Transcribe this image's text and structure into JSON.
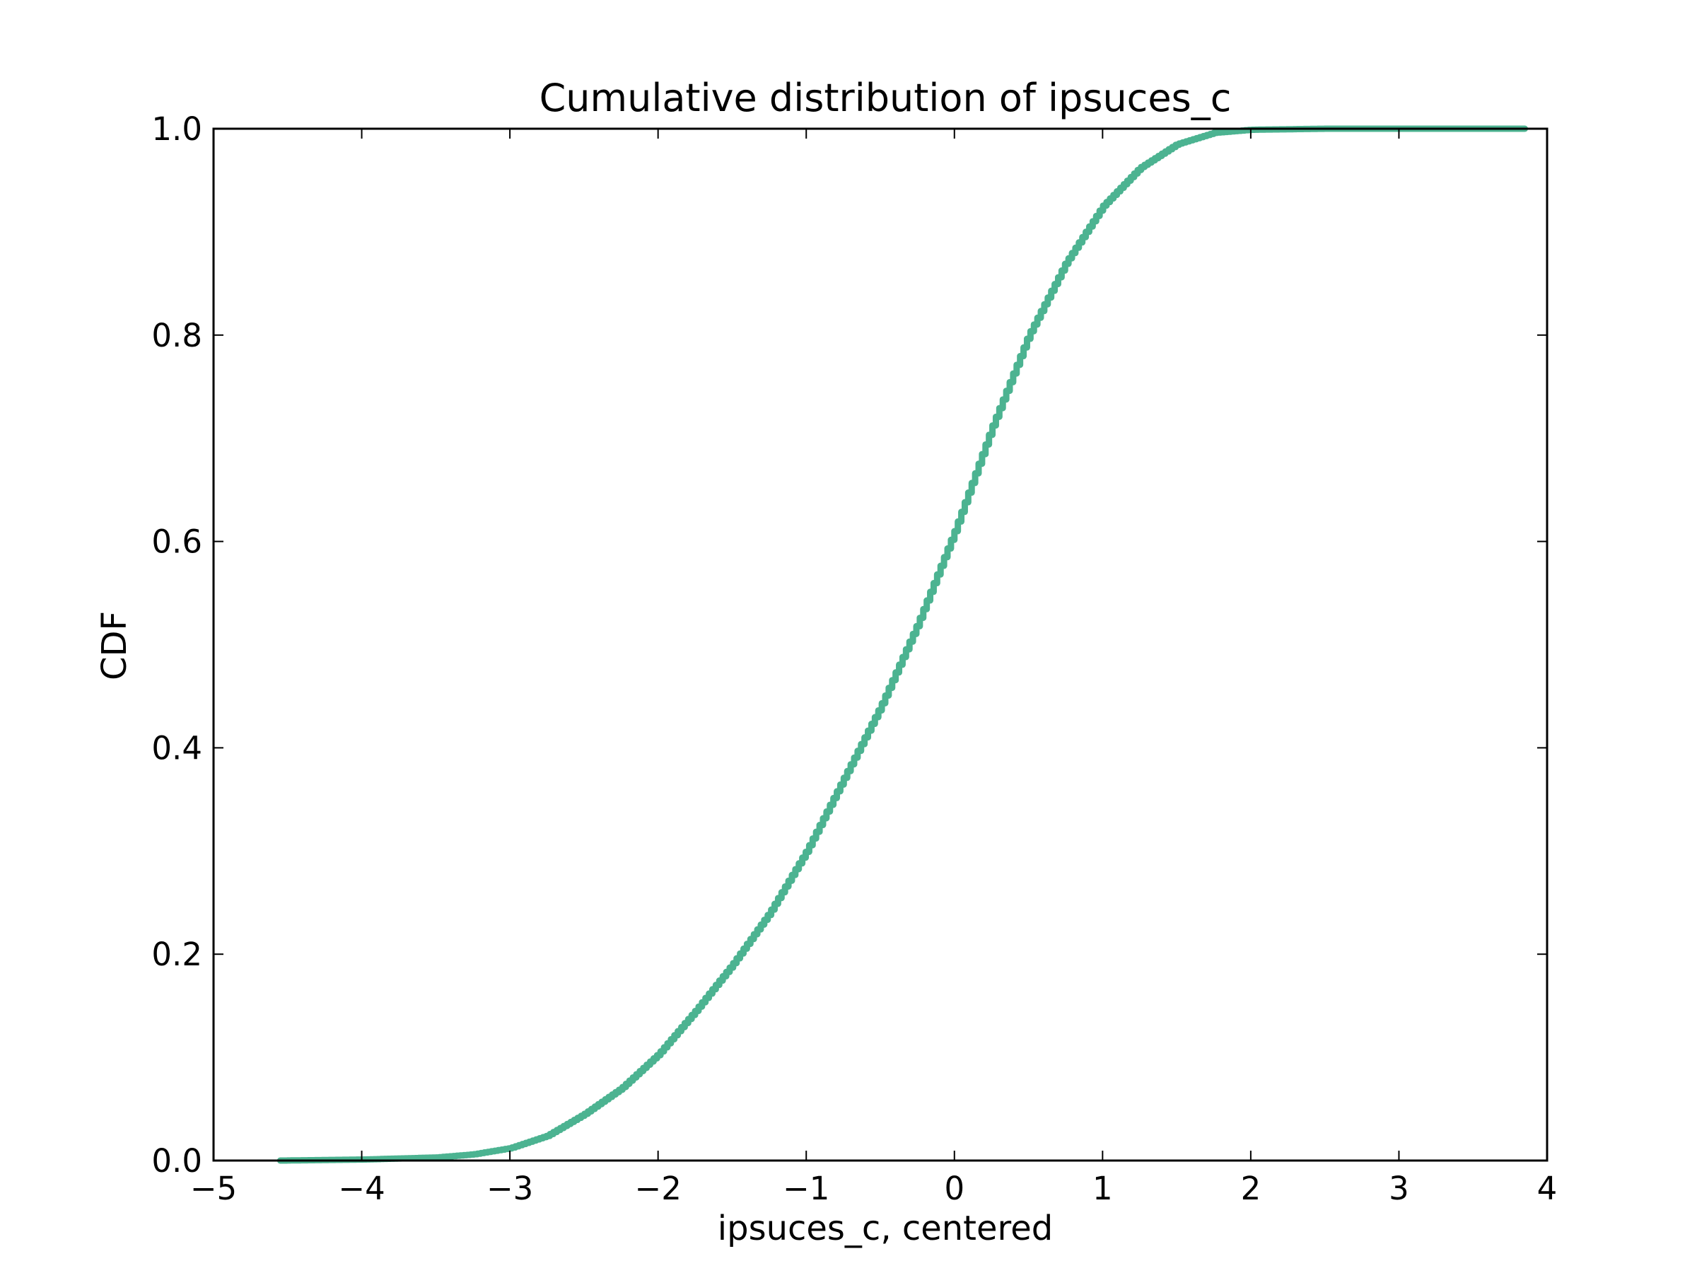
{
  "chart_data": {
    "type": "line",
    "title": "Cumulative distribution of ipsuces_c",
    "xlabel": "ipsuces_c, centered",
    "ylabel": "CDF",
    "xlim": [
      -5,
      4
    ],
    "ylim": [
      0,
      1
    ],
    "x_ticks": [
      -5,
      -4,
      -3,
      -2,
      -1,
      0,
      1,
      2,
      3,
      4
    ],
    "x_tick_labels": [
      "−5",
      "−4",
      "−3",
      "−2",
      "−1",
      "0",
      "1",
      "2",
      "3",
      "4"
    ],
    "y_ticks": [
      0,
      0.2,
      0.4,
      0.6,
      0.8,
      1.0
    ],
    "y_tick_labels": [
      "0.0",
      "0.2",
      "0.4",
      "0.6",
      "0.8",
      "1.0"
    ],
    "grid": false,
    "step": true,
    "series": [
      {
        "color": "#4cb391",
        "x": [
          -4.55,
          -4.0,
          -3.5,
          -3.25,
          -3.0,
          -2.75,
          -2.5,
          -2.25,
          -2.0,
          -1.75,
          -1.5,
          -1.25,
          -1.0,
          -0.75,
          -0.5,
          -0.25,
          0.0,
          0.25,
          0.5,
          0.75,
          1.0,
          1.25,
          1.5,
          1.75,
          2.0,
          2.5,
          3.0,
          3.85
        ],
        "y": [
          0.0,
          0.001,
          0.003,
          0.006,
          0.012,
          0.024,
          0.045,
          0.07,
          0.103,
          0.145,
          0.19,
          0.24,
          0.3,
          0.37,
          0.44,
          0.52,
          0.61,
          0.71,
          0.8,
          0.87,
          0.925,
          0.962,
          0.985,
          0.996,
          0.999,
          1.0,
          1.0,
          1.0
        ]
      }
    ]
  }
}
